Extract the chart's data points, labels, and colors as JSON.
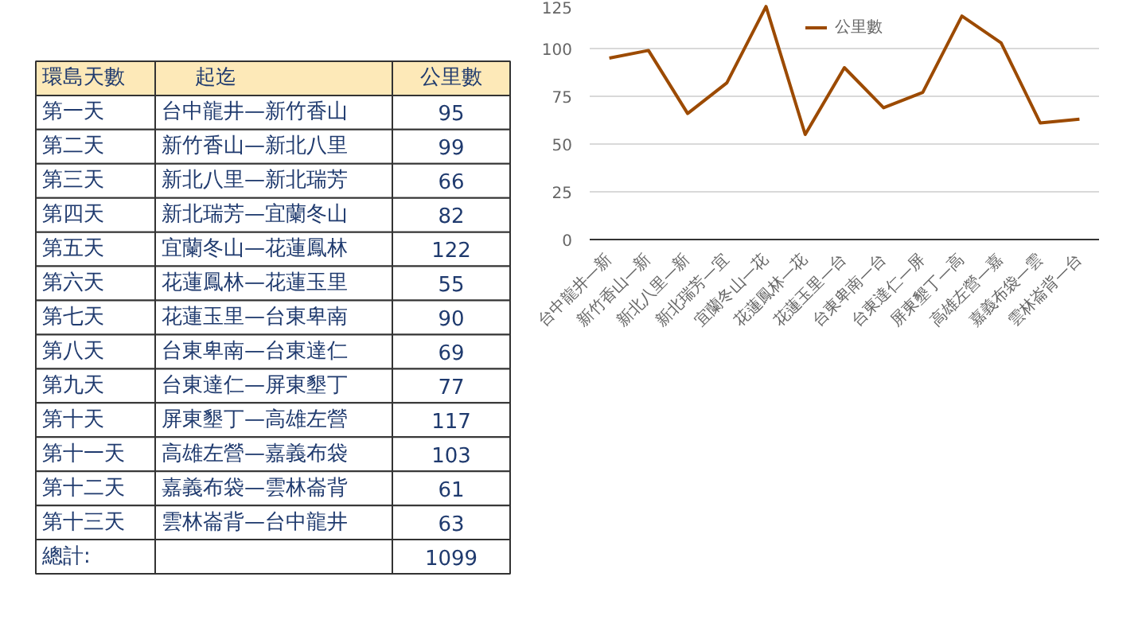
{
  "chart_data": [
    {
      "type": "other",
      "annotations": [
        "環島天數",
        "起迄",
        "公里數",
        "第一天",
        "台中龍井—新竹香山",
        "95",
        "第二天",
        "新竹香山—新北八里",
        "99",
        "第三天",
        "新北八里—新北瑞芳",
        "66",
        "第四天",
        "新北瑞芳—宜蘭冬山",
        "82",
        "第五天",
        "宜蘭冬山—花蓮鳳林",
        "122",
        "第六天",
        "花蓮鳳林—花蓮玉里",
        "55",
        "第七天",
        "花蓮玉里—台東卑南",
        "90",
        "第八天",
        "台東卑南—台東達仁",
        "69",
        "第九天",
        "台東達仁—屏東墾丁",
        "77",
        "第十天",
        "屏東墾丁—高雄左營",
        "117",
        "第十一天",
        "高雄左營—嘉義布袋",
        "103",
        "第十二天",
        "嘉義布袋—雲林崙背",
        "61",
        "第十三天",
        "雲林崙背—台中龍井",
        "63",
        "總計:",
        "1099"
      ]
    },
    {
      "type": "line",
      "categories": [
        "台中龍井—新",
        "新竹香山—新",
        "新北八里—新",
        "新北瑞芳—宜",
        "宜蘭冬山—花",
        "花蓮鳳林—花",
        "花蓮玉里—台",
        "台東卑南—台",
        "台東達仁—屏",
        "屏東墾丁—高",
        "高雄左營—嘉",
        "嘉義布袋—雲",
        "雲林崙背—台"
      ],
      "series": [
        {
          "name": "公里數",
          "color": "#9c4a00",
          "values": [
            95,
            99,
            66,
            82,
            122,
            55,
            90,
            69,
            77,
            117,
            103,
            61,
            63
          ]
        }
      ],
      "ylim": [
        0,
        125
      ],
      "yticks": [
        0,
        25,
        50,
        75,
        100,
        125
      ],
      "grid": "y",
      "legend": "top",
      "marker": "none",
      "line_style": "solid"
    }
  ]
}
